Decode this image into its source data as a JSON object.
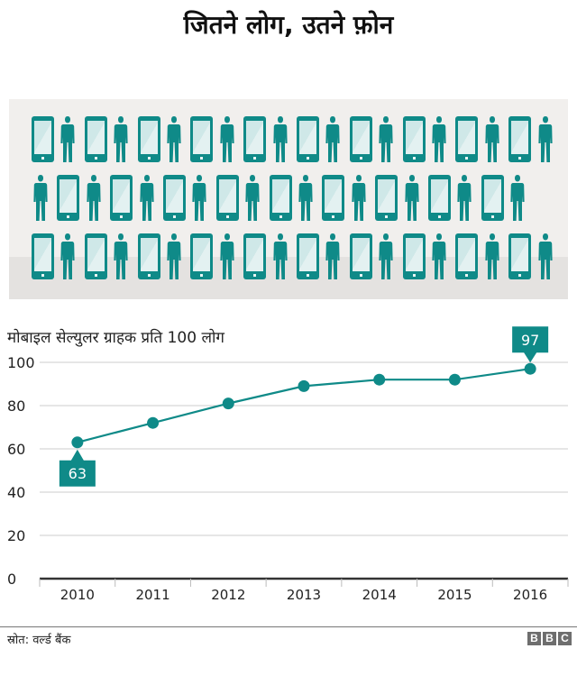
{
  "header": {
    "title": "जितने लोग, उतने फ़ोन"
  },
  "illustration": {
    "description": "rows of alternating mobile-phone-icon and person-icon",
    "rows": [
      {
        "pattern": "phone-person",
        "count": 20
      },
      {
        "pattern": "person-phone",
        "count": 19
      },
      {
        "pattern": "phone-person",
        "count": 20
      }
    ],
    "colors": {
      "icon": "#0f8a88",
      "background": "#f1efed",
      "floor": "#e4e2e0",
      "screen": "#d4eaea"
    }
  },
  "chart": {
    "subtitle": "मोबाइल सेल्युलर ग्राहक प्रति 100 लोग",
    "y_ticks": [
      "100",
      "80",
      "60",
      "40",
      "20",
      "0"
    ],
    "x_ticks": [
      "2010",
      "2011",
      "2012",
      "2013",
      "2014",
      "2015",
      "2016"
    ],
    "label_first": "63",
    "label_last": "97"
  },
  "chart_data": {
    "type": "line",
    "title": "जितने लोग, उतने फ़ोन",
    "subtitle": "मोबाइल सेल्युलर ग्राहक प्रति 100 लोग",
    "xlabel": "",
    "ylabel": "मोबाइल सेल्युलर ग्राहक प्रति 100 लोग",
    "x": [
      "2010",
      "2011",
      "2012",
      "2013",
      "2014",
      "2015",
      "2016"
    ],
    "series": [
      {
        "name": "मोबाइल सेल्युलर ग्राहक प्रति 100 लोग",
        "values": [
          63,
          72,
          81,
          89,
          92,
          92,
          97
        ],
        "color": "#0f8a88"
      }
    ],
    "annotations": [
      {
        "x": "2010",
        "y": 63,
        "text": "63"
      },
      {
        "x": "2016",
        "y": 97,
        "text": "97"
      }
    ],
    "ylim": [
      0,
      100
    ],
    "yticks": [
      0,
      20,
      40,
      60,
      80,
      100
    ],
    "grid": true,
    "legend": "none"
  },
  "footer": {
    "source": "स्रोत: वर्ल्ड बैंक",
    "logo": [
      "B",
      "B",
      "C"
    ]
  },
  "colors": {
    "accent": "#0f8a88",
    "grid": "#cccccc",
    "axis": "#333333",
    "logo": "#6e6e6e"
  }
}
